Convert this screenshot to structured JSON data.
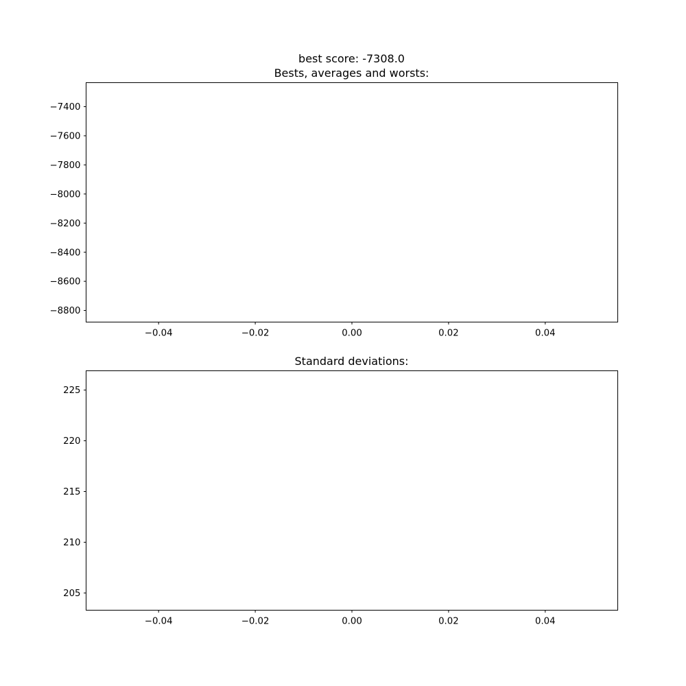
{
  "chart_data": [
    {
      "type": "line",
      "title": "best score: -7308.0\nBests, averages and worsts:",
      "title_lines": [
        "best score: -7308.0",
        "Bests, averages and worsts:"
      ],
      "xlabel": "",
      "ylabel": "",
      "xlim": [
        -0.055,
        0.055
      ],
      "ylim": [
        -8880,
        -7235
      ],
      "xticks": [
        -0.04,
        -0.02,
        0.0,
        0.02,
        0.04
      ],
      "xtick_labels": [
        "−0.04",
        "−0.02",
        "0.00",
        "0.02",
        "0.04"
      ],
      "yticks": [
        -7400,
        -7600,
        -7800,
        -8000,
        -8200,
        -8400,
        -8600,
        -8800
      ],
      "ytick_labels": [
        "−7400",
        "−7600",
        "−7800",
        "−8000",
        "−8200",
        "−8400",
        "−8600",
        "−8800"
      ],
      "grid": false,
      "series": []
    },
    {
      "type": "line",
      "title": "Standard deviations:",
      "title_lines": [
        "Standard deviations:"
      ],
      "xlabel": "",
      "ylabel": "",
      "xlim": [
        -0.055,
        0.055
      ],
      "ylim": [
        203.3,
        226.9
      ],
      "xticks": [
        -0.04,
        -0.02,
        0.0,
        0.02,
        0.04
      ],
      "xtick_labels": [
        "−0.04",
        "−0.02",
        "0.00",
        "0.02",
        "0.04"
      ],
      "yticks": [
        225,
        220,
        215,
        210,
        205
      ],
      "ytick_labels": [
        "225",
        "220",
        "215",
        "210",
        "205"
      ],
      "grid": false,
      "series": []
    }
  ]
}
